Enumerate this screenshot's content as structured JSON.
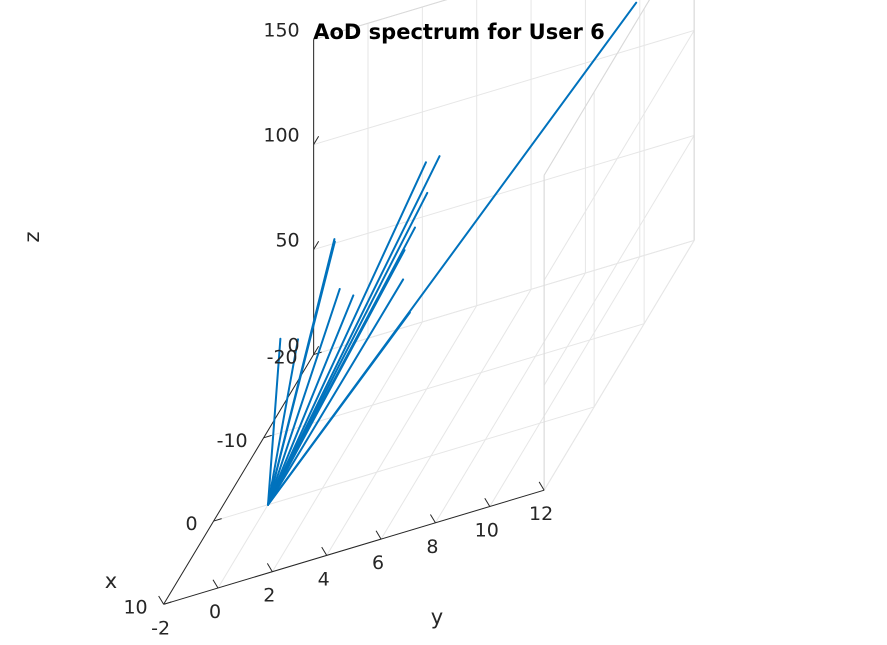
{
  "chart_data": {
    "type": "line",
    "title": "AoD spectrum for User 6",
    "xlabel": "x",
    "ylabel": "y",
    "zlabel": "z",
    "xlim": [
      -20,
      10
    ],
    "ylim": [
      -2,
      12
    ],
    "zlim": [
      0,
      150
    ],
    "x_ticks": [
      "-20",
      "-10",
      "0",
      "10"
    ],
    "y_ticks": [
      "-2",
      "0",
      "2",
      "4",
      "6",
      "8",
      "10",
      "12"
    ],
    "z_ticks": [
      "0",
      "50",
      "100",
      "150"
    ],
    "grid": true,
    "line_color": "#0072bd",
    "origin": {
      "x": 0,
      "y": 0,
      "z": 0
    },
    "rays": [
      {
        "x": -16,
        "y": -0.5,
        "z": 65
      },
      {
        "x": -9,
        "y": -1.2,
        "z": 48
      },
      {
        "x": -15,
        "y": -0.3,
        "z": 67
      },
      {
        "x": -6,
        "y": 0.0,
        "z": 55
      },
      {
        "x": -10,
        "y": 0.8,
        "z": 60
      },
      {
        "x": -10,
        "y": 1.3,
        "z": 55
      },
      {
        "x": -18,
        "y": 2.5,
        "z": 82
      },
      {
        "x": -18,
        "y": 3.0,
        "z": 83
      },
      {
        "x": -15,
        "y": 3.1,
        "z": 77
      },
      {
        "x": -12,
        "y": 3.2,
        "z": 72
      },
      {
        "x": -11,
        "y": 3.0,
        "z": 66
      },
      {
        "x": -8,
        "y": 3.5,
        "z": 62
      },
      {
        "x": -5,
        "y": 4.3,
        "z": 55
      },
      {
        "x": -22,
        "y": 9.5,
        "z": 115
      }
    ]
  }
}
